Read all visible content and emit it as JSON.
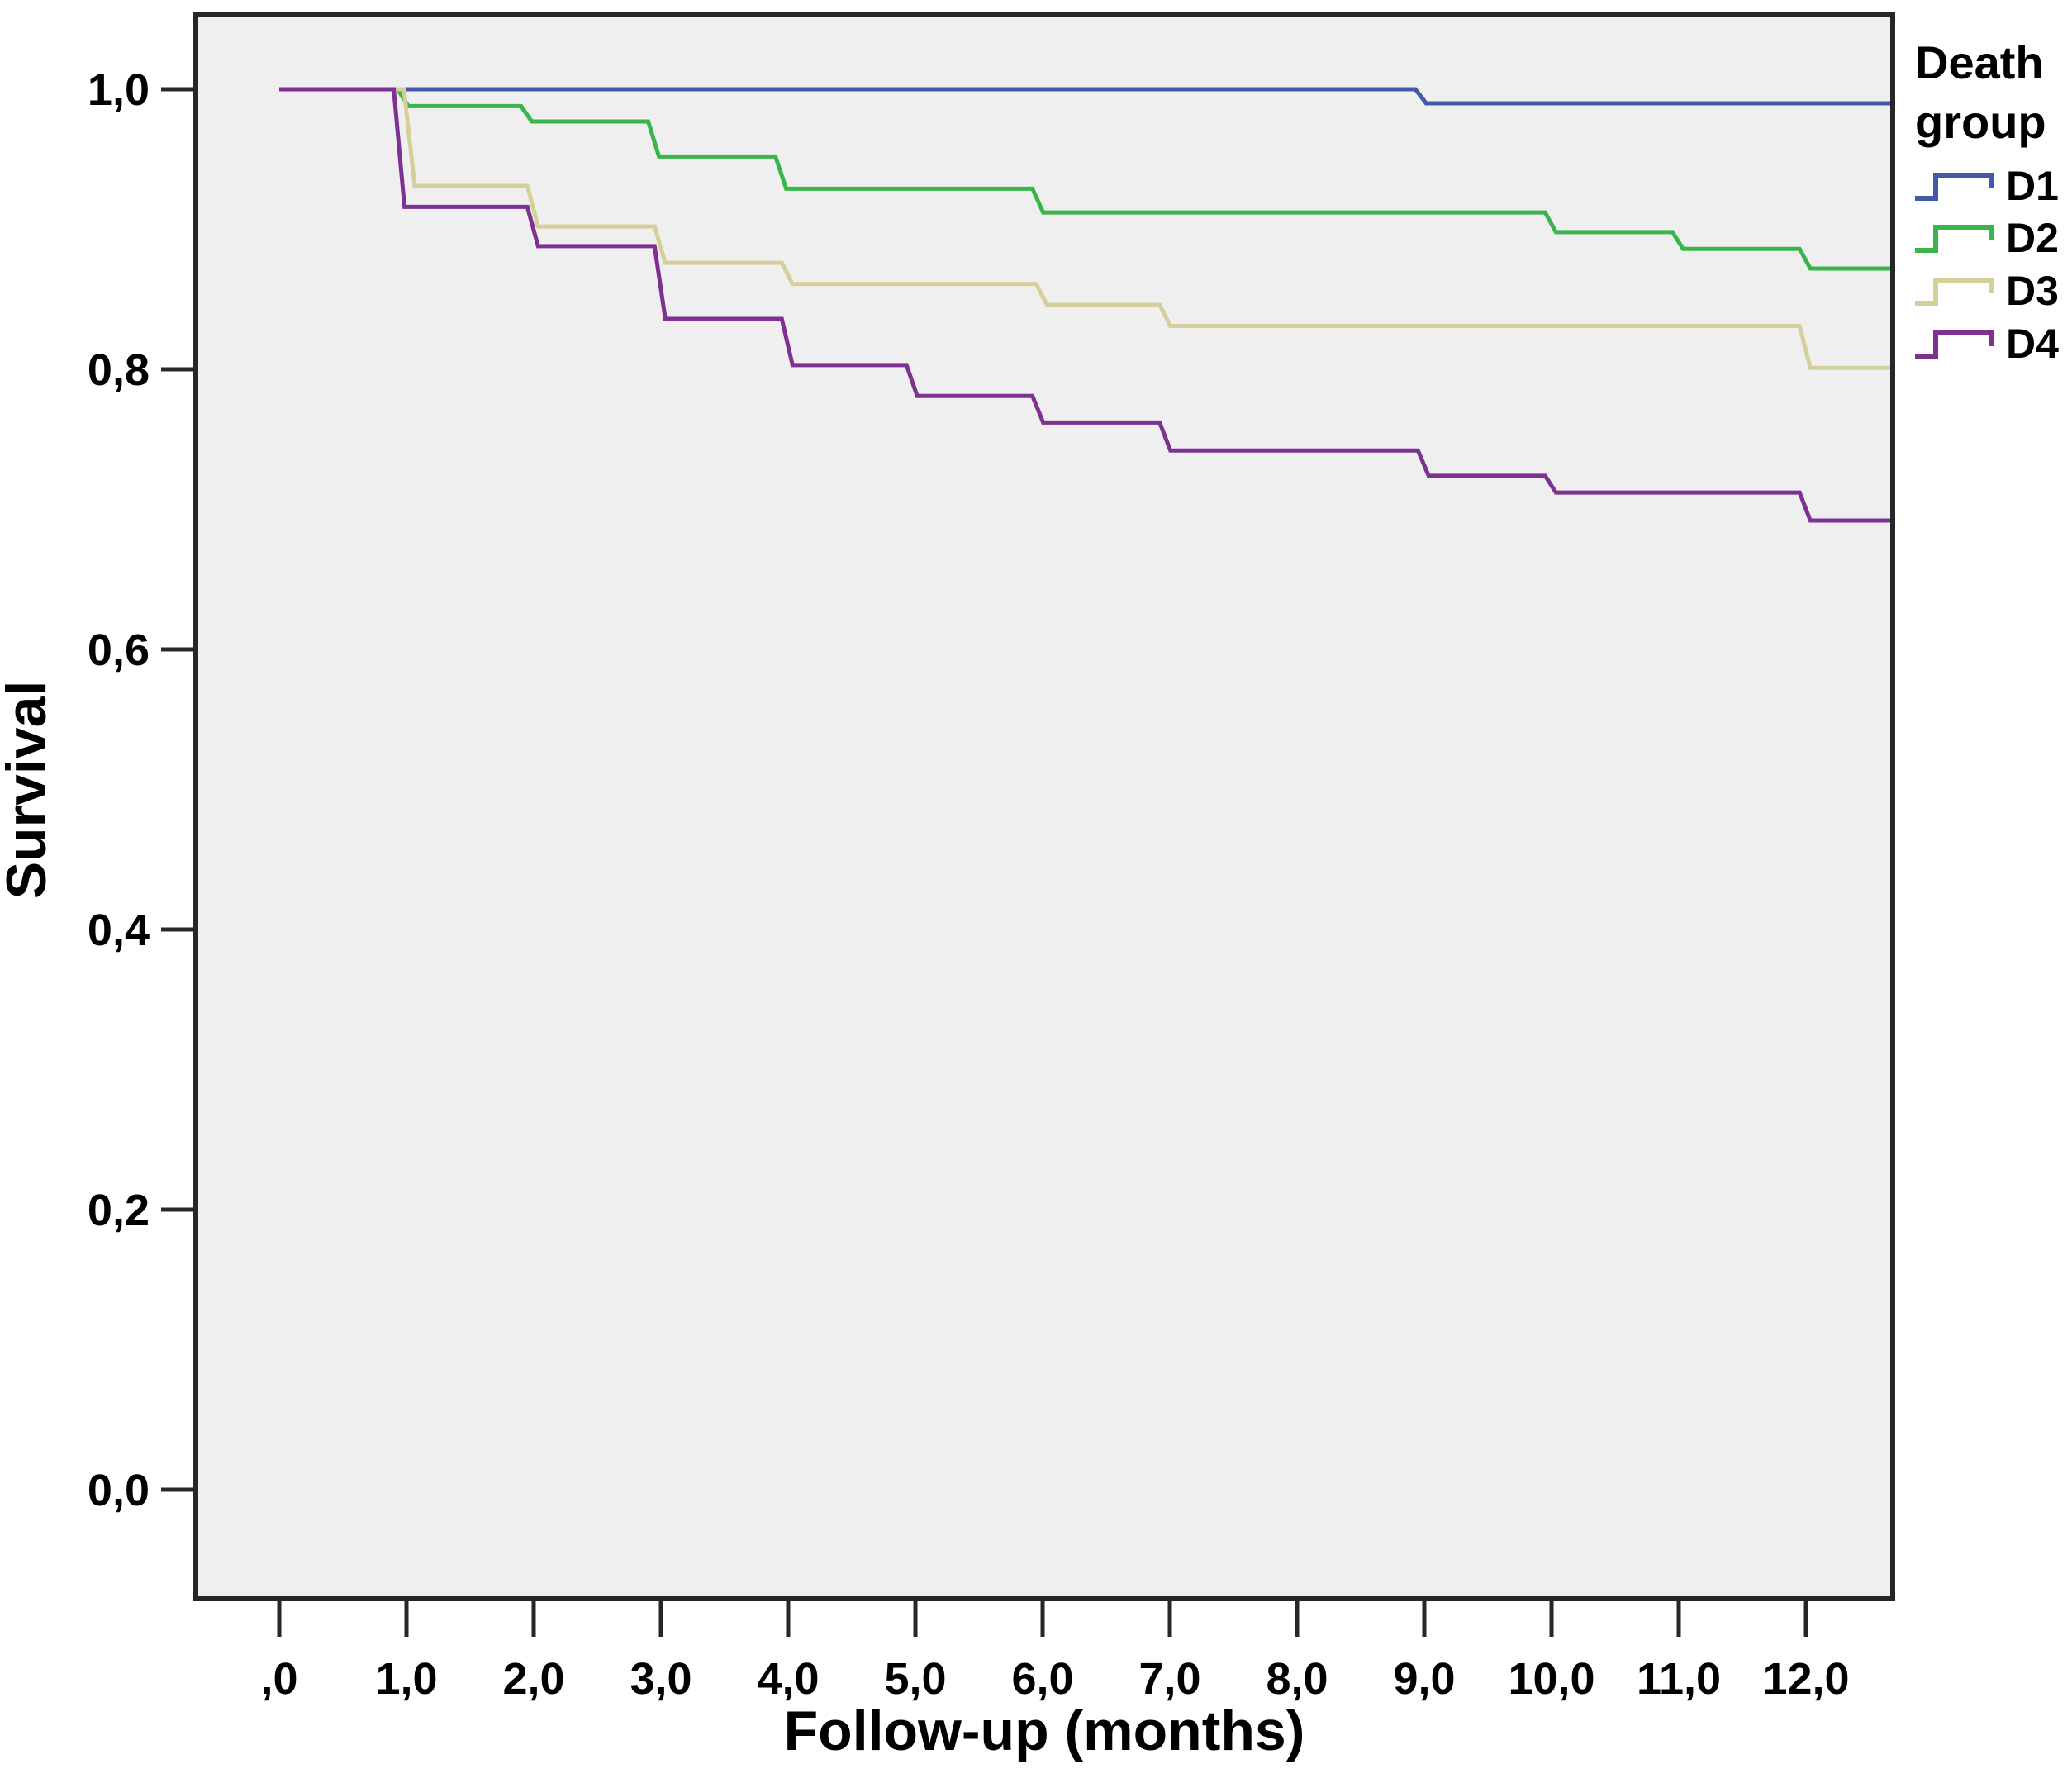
{
  "chart_data": {
    "type": "line",
    "subtype": "kaplan-meier-step-survival",
    "title": "",
    "xlabel": "Follow-up (months)",
    "ylabel": "Survival",
    "x_ticks": {
      "values": [
        0,
        1,
        2,
        3,
        4,
        5,
        6,
        7,
        8,
        9,
        10,
        11,
        12
      ],
      "labels": [
        ",0",
        "1,0",
        "2,0",
        "3,0",
        "4,0",
        "5,0",
        "6,0",
        "7,0",
        "8,0",
        "9,0",
        "10,0",
        "11,0",
        "12,0"
      ]
    },
    "y_ticks": {
      "values": [
        1.0,
        0.8,
        0.6,
        0.4,
        0.2,
        0.0
      ],
      "labels": [
        "1,0",
        "0,8",
        "0,6",
        "0,4",
        "0,2",
        "0,0"
      ]
    },
    "xlim": [
      -0.66,
      12.68
    ],
    "ylim": [
      -0.08,
      1.05
    ],
    "x_data_end": 12.68,
    "grid": false,
    "plot_bg": "#efefef",
    "frame_color": "#262626",
    "legend": {
      "title_lines": [
        "Death",
        "group"
      ],
      "position": "right"
    },
    "series": [
      {
        "name": "D1",
        "color": "#4559a8",
        "steps": [
          [
            0,
            1.0
          ],
          [
            8.93,
            0.99
          ]
        ]
      },
      {
        "name": "D2",
        "color": "#3ab54a",
        "steps": [
          [
            0,
            1.0
          ],
          [
            0.93,
            0.988
          ],
          [
            1.9,
            0.977
          ],
          [
            2.9,
            0.952
          ],
          [
            3.9,
            0.929
          ],
          [
            5.92,
            0.912
          ],
          [
            9.95,
            0.898
          ],
          [
            10.95,
            0.886
          ],
          [
            11.95,
            0.872
          ]
        ]
      },
      {
        "name": "D3",
        "color": "#d5d09a",
        "steps": [
          [
            0,
            1.0
          ],
          [
            0.98,
            0.931
          ],
          [
            1.95,
            0.902
          ],
          [
            2.95,
            0.876
          ],
          [
            3.95,
            0.861
          ],
          [
            5.95,
            0.846
          ],
          [
            6.92,
            0.831
          ],
          [
            11.95,
            0.801
          ]
        ]
      },
      {
        "name": "D4",
        "color": "#7d3190",
        "steps": [
          [
            0,
            1.0
          ],
          [
            0.9,
            0.916
          ],
          [
            1.95,
            0.888
          ],
          [
            2.95,
            0.836
          ],
          [
            3.95,
            0.803
          ],
          [
            4.93,
            0.781
          ],
          [
            5.92,
            0.762
          ],
          [
            6.92,
            0.742
          ],
          [
            8.95,
            0.724
          ],
          [
            9.95,
            0.712
          ],
          [
            11.95,
            0.692
          ]
        ]
      }
    ]
  }
}
